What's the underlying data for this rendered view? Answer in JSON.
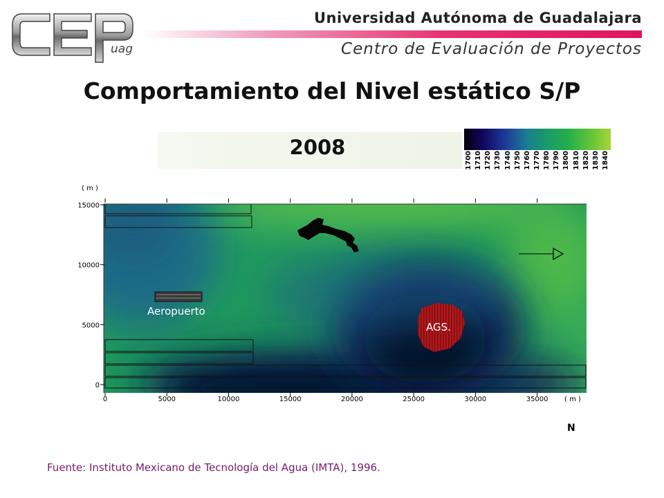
{
  "header": {
    "logo_text": "CEP",
    "logo_sub": "uag",
    "university": "Universidad Autónoma de Guadalajara",
    "center": "Centro de Evaluación de Proyectos"
  },
  "slide": {
    "title": "Comportamiento del Nivel estático S/P",
    "year": "2008",
    "source": "Fuente: Instituto Mexicano de Tecnología del Agua (IMTA), 1996."
  },
  "colors": {
    "accent_pink": "#e01461",
    "scale_low": "#050008",
    "scale_high": "#a6d534",
    "map_green": "#2a9a62",
    "map_dark": "#071a2e",
    "city_red": "#b3191c",
    "source_text": "#7a1a6e"
  },
  "icons": {
    "north_arrow": "right-arrow-icon"
  },
  "chart_data": {
    "type": "heatmap",
    "title": "Comportamiento del Nivel estático S/P",
    "subtitle": "2008",
    "colorbar": {
      "ticks": [
        1700,
        1710,
        1720,
        1730,
        1740,
        1750,
        1760,
        1770,
        1780,
        1790,
        1800,
        1810,
        1820,
        1830,
        1840
      ],
      "range": [
        1700,
        1840
      ],
      "orientation": "horizontal",
      "placement": "top-right"
    },
    "x_axis": {
      "unit_label": "( m )",
      "ticks": [
        0,
        5000,
        10000,
        15000,
        20000,
        25000,
        30000,
        35000
      ],
      "range": [
        0,
        39000
      ]
    },
    "y_axis": {
      "unit_label": "( m )",
      "ticks": [
        0,
        5000,
        10000,
        15000
      ],
      "range": [
        -500,
        15500
      ]
    },
    "annotations": [
      {
        "text": "Aeropuerto",
        "x": 6000,
        "y": 6300
      },
      {
        "text": "AGS.",
        "x": 27000,
        "y": 4700
      }
    ],
    "north_label": "N",
    "grid": true
  }
}
